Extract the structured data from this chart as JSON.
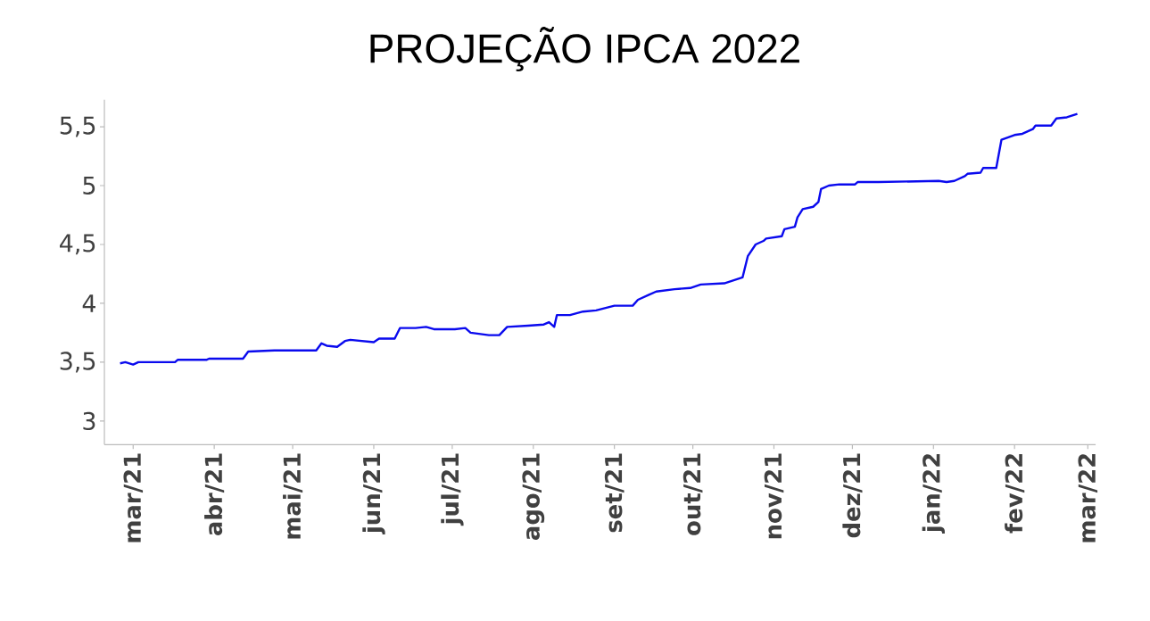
{
  "chart_data": {
    "type": "line",
    "title": "PROJEÇÃO IPCA 2022",
    "x": [
      "2021-02-24",
      "2021-02-26",
      "2021-03-01",
      "2021-03-03",
      "2021-03-17",
      "2021-03-18",
      "2021-03-29",
      "2021-03-30",
      "2021-04-12",
      "2021-04-14",
      "2021-04-24",
      "2021-05-10",
      "2021-05-12",
      "2021-05-13",
      "2021-05-14",
      "2021-05-18",
      "2021-05-21",
      "2021-05-23",
      "2021-06-01",
      "2021-06-03",
      "2021-06-09",
      "2021-06-11",
      "2021-06-17",
      "2021-06-21",
      "2021-06-24",
      "2021-07-02",
      "2021-07-06",
      "2021-07-08",
      "2021-07-15",
      "2021-07-19",
      "2021-07-22",
      "2021-07-30",
      "2021-08-05",
      "2021-08-07",
      "2021-08-09",
      "2021-08-10",
      "2021-08-15",
      "2021-08-20",
      "2021-08-25",
      "2021-09-01",
      "2021-09-08",
      "2021-09-10",
      "2021-09-14",
      "2021-09-17",
      "2021-09-24",
      "2021-09-30",
      "2021-10-04",
      "2021-10-13",
      "2021-10-20",
      "2021-10-22",
      "2021-10-25",
      "2021-10-28",
      "2021-10-29",
      "2021-11-04",
      "2021-11-05",
      "2021-11-09",
      "2021-11-10",
      "2021-11-12",
      "2021-11-16",
      "2021-11-18",
      "2021-11-19",
      "2021-11-22",
      "2021-11-26",
      "2021-12-02",
      "2021-12-03",
      "2021-12-11",
      "2022-01-03",
      "2022-01-06",
      "2022-01-09",
      "2022-01-13",
      "2022-01-14",
      "2022-01-19",
      "2022-01-20",
      "2022-01-25",
      "2022-01-27",
      "2022-02-01",
      "2022-02-04",
      "2022-02-08",
      "2022-02-09",
      "2022-02-15",
      "2022-02-17",
      "2022-02-21",
      "2022-02-25"
    ],
    "series": [
      {
        "color": "#0a0aee",
        "values": [
          3.49,
          3.5,
          3.48,
          3.5,
          3.5,
          3.52,
          3.52,
          3.53,
          3.53,
          3.59,
          3.6,
          3.6,
          3.66,
          3.65,
          3.64,
          3.63,
          3.68,
          3.69,
          3.67,
          3.7,
          3.7,
          3.79,
          3.79,
          3.8,
          3.78,
          3.78,
          3.79,
          3.75,
          3.73,
          3.73,
          3.8,
          3.81,
          3.82,
          3.84,
          3.8,
          3.9,
          3.9,
          3.93,
          3.94,
          3.98,
          3.98,
          4.03,
          4.07,
          4.1,
          4.12,
          4.13,
          4.16,
          4.17,
          4.22,
          4.4,
          4.5,
          4.53,
          4.55,
          4.57,
          4.63,
          4.65,
          4.73,
          4.8,
          4.82,
          4.86,
          4.97,
          5.0,
          5.01,
          5.01,
          5.03,
          5.03,
          5.04,
          5.03,
          5.04,
          5.08,
          5.1,
          5.11,
          5.15,
          5.15,
          5.39,
          5.43,
          5.44,
          5.48,
          5.51,
          5.51,
          5.57,
          5.58,
          5.61
        ]
      }
    ],
    "xlim": [
      "2021-02-18",
      "2022-03-04"
    ],
    "xticks": [
      {
        "value": "2021-03-01",
        "label": "mar/21"
      },
      {
        "value": "2021-04-01",
        "label": "abr/21"
      },
      {
        "value": "2021-05-01",
        "label": "mai/21"
      },
      {
        "value": "2021-06-01",
        "label": "jun/21"
      },
      {
        "value": "2021-07-01",
        "label": "jul/21"
      },
      {
        "value": "2021-08-01",
        "label": "ago/21"
      },
      {
        "value": "2021-09-01",
        "label": "set/21"
      },
      {
        "value": "2021-10-01",
        "label": "out/21"
      },
      {
        "value": "2021-11-01",
        "label": "nov/21"
      },
      {
        "value": "2021-12-01",
        "label": "dez/21"
      },
      {
        "value": "2022-01-01",
        "label": "jan/22"
      },
      {
        "value": "2022-02-01",
        "label": "fev/22"
      },
      {
        "value": "2022-03-01",
        "label": "mar/22"
      }
    ],
    "ylim": [
      2.8,
      5.73
    ],
    "yticks": [
      3,
      {
        "value": 3.5,
        "label": "3,5"
      },
      4,
      {
        "value": 4.5,
        "label": "4,5"
      },
      5,
      {
        "value": 5.5,
        "label": "5,5"
      }
    ]
  }
}
